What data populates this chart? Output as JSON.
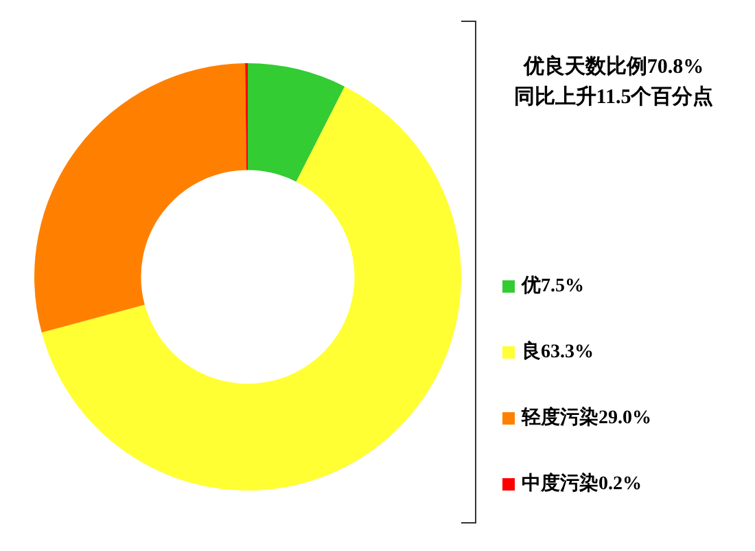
{
  "chart_data": {
    "type": "donut",
    "categories": [
      "优",
      "良",
      "轻度污染",
      "中度污染"
    ],
    "values": [
      7.5,
      63.3,
      29.0,
      0.2
    ],
    "value_labels": [
      "7.5%",
      "63.3%",
      "29.0%",
      "0.2%"
    ],
    "colors": [
      "#33cc33",
      "#ffff33",
      "#ff8000",
      "#ff0000"
    ],
    "legend": "right",
    "annotations": [
      "优良天数比例70.8%",
      "同比上升11.5个百分点"
    ]
  }
}
